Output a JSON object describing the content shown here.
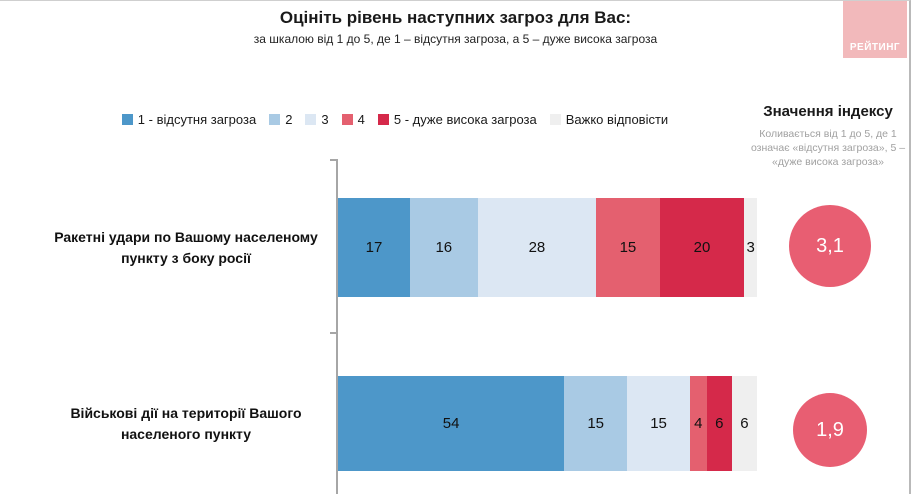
{
  "header": {
    "title": "Оцініть рівень наступних загроз для Вас:",
    "subtitle": "за шкалою від 1 до 5, де 1 – відсутня загроза, а 5 – дуже висока загроза"
  },
  "logo": {
    "text": "РЕЙТИНГ",
    "bg_color": "#f2b9bb"
  },
  "legend": {
    "items": [
      {
        "label": "1 - відсутня загроза",
        "color": "#4d97c9"
      },
      {
        "label": "2",
        "color": "#a9cae4"
      },
      {
        "label": "3",
        "color": "#dce7f3"
      },
      {
        "label": "4",
        "color": "#e4606f"
      },
      {
        "label": "5 - дуже висока загроза",
        "color": "#d5294a"
      },
      {
        "label": "Важко відповісти",
        "color": "#efefef"
      }
    ]
  },
  "index_panel": {
    "title": "Значення індексу",
    "description": "Коливається від 1 до 5, де 1 означає «відсутня загроза», 5 – «дуже висока загроза»"
  },
  "chart_data": {
    "type": "bar",
    "orientation": "horizontal",
    "stacked": true,
    "xlim": [
      0,
      100
    ],
    "categories": [
      "Ракетні удари по Вашому населеному пункту з боку росії",
      "Військові дії на території Вашого населеного пункту"
    ],
    "series": [
      {
        "name": "1 - відсутня загроза",
        "color": "#4d97c9",
        "values": [
          17,
          54
        ]
      },
      {
        "name": "2",
        "color": "#a9cae4",
        "values": [
          16,
          15
        ]
      },
      {
        "name": "3",
        "color": "#dce7f3",
        "values": [
          28,
          15
        ]
      },
      {
        "name": "4",
        "color": "#e4606f",
        "values": [
          15,
          4
        ]
      },
      {
        "name": "5 - дуже висока загроза",
        "color": "#d5294a",
        "values": [
          20,
          6
        ]
      },
      {
        "name": "Важко відповісти",
        "color": "#efefef",
        "values": [
          3,
          6
        ]
      }
    ],
    "index_values": [
      "3,1",
      "1,9"
    ],
    "index_circle_color": "#e85e72"
  }
}
